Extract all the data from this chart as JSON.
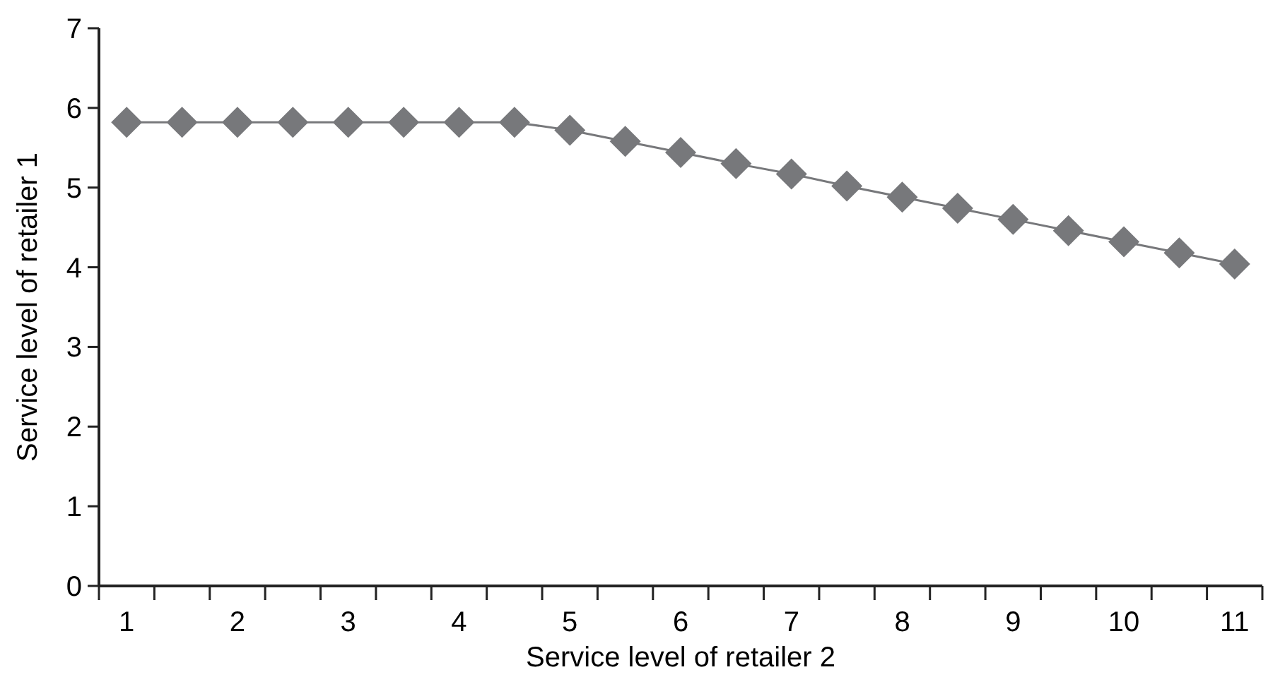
{
  "chart_data": {
    "type": "line",
    "xlabel": "Service level of retailer 2",
    "ylabel": "Service level of retailer 1",
    "categories": [
      "1",
      null,
      "2",
      null,
      "3",
      null,
      "4",
      null,
      "5",
      null,
      "6",
      null,
      "7",
      null,
      "8",
      null,
      "9",
      null,
      "10",
      null,
      "11"
    ],
    "series": [
      {
        "color": "#77787b",
        "values": [
          5.82,
          5.82,
          5.82,
          5.82,
          5.82,
          5.82,
          5.82,
          5.82,
          5.72,
          5.58,
          5.44,
          5.3,
          5.17,
          5.02,
          4.88,
          4.74,
          4.6,
          4.46,
          4.32,
          4.18,
          4.04
        ]
      }
    ],
    "ylim": [
      0,
      7
    ],
    "yticks": [
      0,
      1,
      2,
      3,
      4,
      5,
      6,
      7
    ],
    "marker": "diamond",
    "line_style": "solid",
    "grid": false
  }
}
